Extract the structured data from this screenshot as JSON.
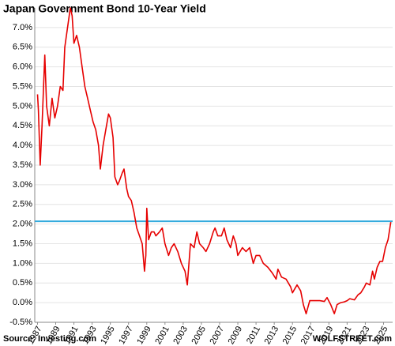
{
  "chart_data": {
    "type": "line",
    "title": "Japan Government Bond 10-Year Yield",
    "source": "Source: Investing.com",
    "credit": "WOLFSTREET.com",
    "color": "#e60000",
    "grid": true,
    "reference_line": {
      "value": 2.07,
      "color": "#33aadd"
    },
    "xlim": [
      1986.7,
      2026
    ],
    "ylim": [
      -0.5,
      7.5
    ],
    "xticks": [
      1987,
      1989,
      1991,
      1993,
      1995,
      1997,
      1999,
      2001,
      2003,
      2005,
      2007,
      2009,
      2011,
      2013,
      2015,
      2017,
      2019,
      2021,
      2023,
      2025
    ],
    "yticks": [
      {
        "value": -0.5,
        "label": "-0.5%"
      },
      {
        "value": 0,
        "label": "0.0%"
      },
      {
        "value": 0.5,
        "label": "0.5%"
      },
      {
        "value": 1,
        "label": "1.0%"
      },
      {
        "value": 1.5,
        "label": "1.5%"
      },
      {
        "value": 2,
        "label": "2.0%"
      },
      {
        "value": 2.5,
        "label": "2.5%"
      },
      {
        "value": 3,
        "label": "3.0%"
      },
      {
        "value": 3.5,
        "label": "3.5%"
      },
      {
        "value": 4,
        "label": "4.0%"
      },
      {
        "value": 4.5,
        "label": "4.5%"
      },
      {
        "value": 5,
        "label": "5.0%"
      },
      {
        "value": 5.5,
        "label": "5.5%"
      },
      {
        "value": 6,
        "label": "6.0%"
      },
      {
        "value": 6.5,
        "label": "6.5%"
      },
      {
        "value": 7,
        "label": "7.0%"
      }
    ],
    "x": [
      1987.0,
      1987.1,
      1987.3,
      1987.5,
      1987.8,
      1988.0,
      1988.3,
      1988.6,
      1988.9,
      1989.2,
      1989.5,
      1989.8,
      1990.0,
      1990.3,
      1990.6,
      1990.8,
      1991.0,
      1991.3,
      1991.6,
      1991.9,
      1992.2,
      1992.5,
      1992.8,
      1993.1,
      1993.4,
      1993.7,
      1993.9,
      1994.2,
      1994.5,
      1994.8,
      1995.0,
      1995.3,
      1995.5,
      1995.8,
      1996.0,
      1996.3,
      1996.5,
      1996.8,
      1997.0,
      1997.3,
      1997.6,
      1997.9,
      1998.2,
      1998.5,
      1998.75,
      1998.9,
      1999.0,
      1999.2,
      1999.5,
      1999.8,
      2000.0,
      2000.4,
      2000.7,
      2001.0,
      2001.4,
      2001.7,
      2002.0,
      2002.4,
      2002.8,
      2003.2,
      2003.45,
      2003.6,
      2003.8,
      2004.2,
      2004.5,
      2004.8,
      2005.2,
      2005.5,
      2005.9,
      2006.3,
      2006.5,
      2006.8,
      2007.2,
      2007.5,
      2007.8,
      2008.2,
      2008.5,
      2008.8,
      2009.0,
      2009.5,
      2009.9,
      2010.3,
      2010.7,
      2011.0,
      2011.4,
      2011.8,
      2012.3,
      2012.8,
      2013.2,
      2013.4,
      2013.8,
      2014.3,
      2014.8,
      2015.0,
      2015.5,
      2015.9,
      2016.2,
      2016.5,
      2016.9,
      2017.5,
      2018.0,
      2018.5,
      2018.8,
      2019.2,
      2019.6,
      2019.9,
      2020.3,
      2020.7,
      2021.0,
      2021.3,
      2021.8,
      2022.2,
      2022.5,
      2022.9,
      2023.1,
      2023.5,
      2023.8,
      2024.0,
      2024.3,
      2024.6,
      2024.9,
      2025.2,
      2025.5,
      2025.8
    ],
    "values": [
      5.3,
      4.9,
      3.5,
      4.5,
      6.3,
      5.0,
      4.5,
      5.2,
      4.7,
      5.0,
      5.5,
      5.4,
      6.5,
      7.0,
      7.5,
      7.3,
      6.6,
      6.8,
      6.5,
      6.0,
      5.5,
      5.2,
      4.9,
      4.6,
      4.4,
      4.0,
      3.4,
      4.0,
      4.4,
      4.8,
      4.7,
      4.2,
      3.2,
      3.0,
      3.1,
      3.3,
      3.4,
      2.9,
      2.7,
      2.6,
      2.3,
      1.9,
      1.7,
      1.5,
      0.8,
      1.2,
      2.4,
      1.6,
      1.8,
      1.8,
      1.7,
      1.8,
      1.9,
      1.5,
      1.2,
      1.4,
      1.5,
      1.3,
      1.0,
      0.8,
      0.45,
      0.9,
      1.5,
      1.4,
      1.8,
      1.5,
      1.4,
      1.3,
      1.5,
      1.8,
      1.9,
      1.7,
      1.7,
      1.9,
      1.6,
      1.4,
      1.7,
      1.5,
      1.2,
      1.4,
      1.3,
      1.4,
      1.0,
      1.2,
      1.2,
      1.0,
      0.9,
      0.75,
      0.6,
      0.85,
      0.65,
      0.6,
      0.4,
      0.25,
      0.45,
      0.3,
      -0.05,
      -0.28,
      0.05,
      0.05,
      0.05,
      0.03,
      0.13,
      -0.05,
      -0.28,
      -0.05,
      0.0,
      0.02,
      0.05,
      0.1,
      0.07,
      0.2,
      0.25,
      0.4,
      0.5,
      0.45,
      0.8,
      0.6,
      0.9,
      1.05,
      1.05,
      1.4,
      1.6,
      2.05
    ]
  }
}
